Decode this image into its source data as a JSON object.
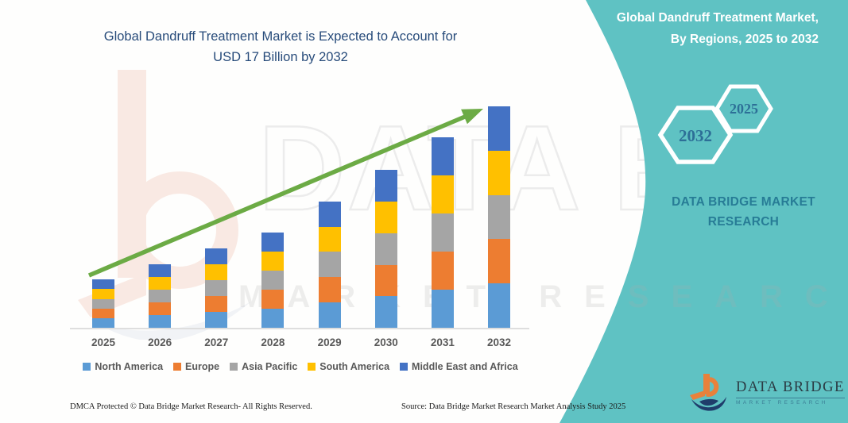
{
  "chart": {
    "title_line1": "Global Dandruff Treatment Market is Expected to Account for",
    "title_line2": "USD 17 Billion by 2032"
  },
  "chart_data": {
    "type": "bar",
    "stacked": true,
    "title": "Global Dandruff Treatment Market is Expected to Account for USD 17 Billion by 2032",
    "unit": "USD Billion",
    "categories": [
      "2025",
      "2026",
      "2027",
      "2028",
      "2029",
      "2030",
      "2031",
      "2032"
    ],
    "totals_estimated": [
      3.7,
      4.9,
      6.1,
      7.3,
      9.7,
      12.1,
      14.6,
      17.0
    ],
    "series": [
      {
        "name": "North America",
        "color": "#5B9BD5",
        "values": [
          0.74,
          0.98,
          1.22,
          1.46,
          1.94,
          2.42,
          2.92,
          3.4
        ]
      },
      {
        "name": "Europe",
        "color": "#ED7D31",
        "values": [
          0.74,
          0.98,
          1.22,
          1.46,
          1.94,
          2.42,
          2.92,
          3.4
        ]
      },
      {
        "name": "Asia Pacific",
        "color": "#A5A5A5",
        "values": [
          0.74,
          0.98,
          1.22,
          1.46,
          1.94,
          2.42,
          2.92,
          3.4
        ]
      },
      {
        "name": "South America",
        "color": "#FFC000",
        "values": [
          0.74,
          0.98,
          1.22,
          1.46,
          1.94,
          2.42,
          2.92,
          3.4
        ]
      },
      {
        "name": "Middle East and Africa",
        "color": "#4472C4",
        "values": [
          0.74,
          0.98,
          1.22,
          1.46,
          1.94,
          2.42,
          2.92,
          3.4
        ]
      }
    ],
    "xlabel": "",
    "ylabel": "",
    "grid": false,
    "legend_position": "bottom",
    "trend_arrow_color": "#6CAB45"
  },
  "side_panel": {
    "title_line1": "Global Dandruff Treatment Market,",
    "title_line2": "By Regions, 2025 to 2032",
    "hexagon_back_label": "2025",
    "hexagon_front_label": "2032",
    "brand_text": "DATA BRIDGE MARKET RESEARCH",
    "background_color": "#5FC2C3",
    "text_color": "#277C96"
  },
  "logo": {
    "title": "DATA BRIDGE",
    "subtitle": "MARKET RESEARCH"
  },
  "watermark": {
    "big_text": "DATA BRIDGE",
    "spaced_text": "MARKET RESEARCH"
  },
  "footer": {
    "dmca": "DMCA Protected © Data Bridge Market Research-  All Rights Reserved.",
    "source": "Source: Data Bridge Market Research  Market Analysis Study 2025"
  }
}
